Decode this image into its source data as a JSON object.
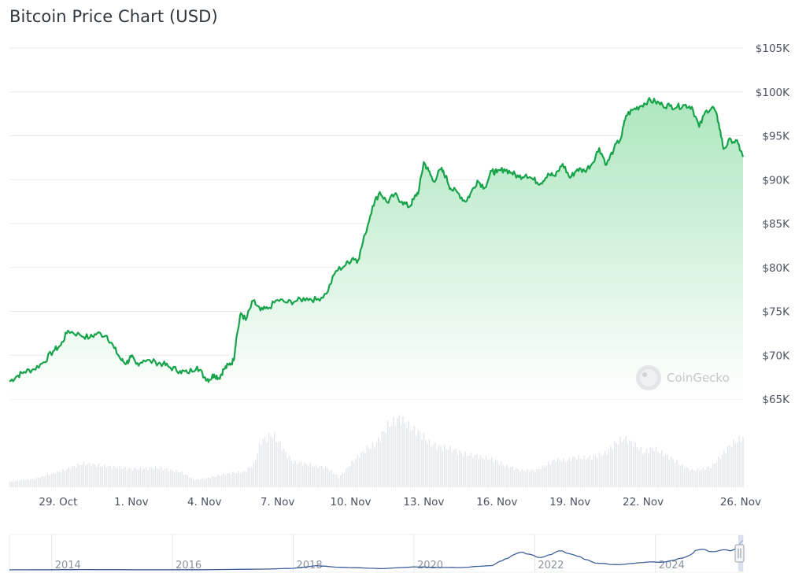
{
  "title": "Bitcoin Price Chart (USD)",
  "watermark": "CoinGecko",
  "colors": {
    "line": "#16a34a",
    "area_top": "#a9e5bb",
    "area_bottom": "#ffffff",
    "volume": "#e4e7ec",
    "grid": "#e8eaed",
    "navigator_line": "#3e5f9a"
  },
  "chart_data": {
    "type": "area",
    "title": "Bitcoin Price Chart (USD)",
    "x_start": "2024-10-27",
    "x_end": "2024-11-26",
    "x_tick_labels": [
      "29. Oct",
      "1. Nov",
      "4. Nov",
      "7. Nov",
      "10. Nov",
      "13. Nov",
      "16. Nov",
      "19. Nov",
      "22. Nov",
      "26. Nov"
    ],
    "x_tick_days": [
      2,
      5,
      8,
      11,
      14,
      17,
      20,
      23,
      26,
      30
    ],
    "y_tick_labels": [
      "$65K",
      "$70K",
      "$75K",
      "$80K",
      "$85K",
      "$90K",
      "$95K",
      "$100K",
      "$105K"
    ],
    "y_tick_values": [
      65000,
      70000,
      75000,
      80000,
      85000,
      90000,
      95000,
      100000,
      105000
    ],
    "ylim": [
      65000,
      105000
    ],
    "grid": true,
    "series": [
      {
        "days": [
          0,
          0.3,
          0.6,
          1,
          1.4,
          1.8,
          2.1,
          2.4,
          2.9,
          3.3,
          3.6,
          4,
          4.3,
          4.6,
          4.8,
          5,
          5.2,
          5.5,
          6,
          6.3,
          6.6,
          7,
          7.3,
          7.7,
          8,
          8.2,
          8.4,
          8.6,
          8.8,
          9,
          9.2,
          9.3,
          9.5,
          9.7,
          10,
          10.3,
          10.6,
          11,
          11.4,
          11.8,
          12.2,
          12.6,
          13,
          13.4,
          13.8,
          14.1,
          14.3,
          14.6,
          14.9,
          15.2,
          15.5,
          15.8,
          16.1,
          16.4,
          16.6,
          16.8,
          17,
          17.2,
          17.4,
          17.7,
          17.9,
          18.1,
          18.4,
          18.7,
          18.9,
          19.2,
          19.5,
          19.8,
          20,
          20.3,
          20.6,
          20.9,
          21.2,
          21.5,
          21.8,
          22.1,
          22.4,
          22.7,
          23,
          23.3,
          23.6,
          23.9,
          24.2,
          24.5,
          24.8,
          25.1,
          25.3,
          25.6,
          25.9,
          26.2,
          26.5,
          26.8,
          27.1,
          27.4,
          27.7,
          28,
          28.3,
          28.6,
          28.9,
          29.1,
          29.3,
          29.6,
          29.9,
          30.1
        ],
        "values": [
          67000,
          67600,
          68100,
          68400,
          69200,
          70500,
          71100,
          72800,
          72300,
          72000,
          72500,
          72200,
          70800,
          69400,
          69100,
          69800,
          69000,
          69400,
          69200,
          69000,
          68600,
          68200,
          68000,
          68700,
          67500,
          67200,
          67800,
          67400,
          68400,
          68900,
          69400,
          71800,
          74800,
          74000,
          76200,
          75100,
          75300,
          76300,
          76000,
          76200,
          76500,
          76300,
          77000,
          79600,
          80300,
          81100,
          80800,
          83800,
          87000,
          88600,
          87400,
          88300,
          87500,
          86900,
          87800,
          88800,
          92000,
          91000,
          89800,
          91200,
          90400,
          89000,
          88500,
          87500,
          88300,
          89900,
          89100,
          91000,
          90800,
          91200,
          90800,
          90300,
          90600,
          90000,
          89600,
          90700,
          90400,
          91800,
          90200,
          91200,
          91000,
          91800,
          93600,
          91700,
          93500,
          94800,
          97300,
          98000,
          98400,
          99000,
          98900,
          98500,
          98400,
          98300,
          98500,
          98300,
          96000,
          97900,
          98200,
          96500,
          93500,
          94600,
          94100,
          92600
        ]
      }
    ],
    "volume_series": {
      "days": [
        0,
        1,
        2,
        3,
        4,
        5,
        6,
        7,
        7.6,
        8.2,
        9,
        9.6,
        10,
        10.3,
        10.8,
        11.2,
        11.6,
        12,
        12.6,
        13,
        13.5,
        14.1,
        14.6,
        15,
        15.5,
        16,
        16.4,
        16.8,
        17.2,
        17.6,
        18,
        18.6,
        19.2,
        19.8,
        20.4,
        21,
        21.6,
        22,
        22.4,
        22.8,
        23.2,
        23.6,
        24,
        24.4,
        24.8,
        25.2,
        25.6,
        26,
        26.4,
        26.8,
        27.2,
        27.6,
        28,
        28.4,
        28.8,
        29.2,
        29.6,
        30.1
      ],
      "values": [
        0.08,
        0.12,
        0.22,
        0.34,
        0.3,
        0.26,
        0.28,
        0.22,
        0.1,
        0.14,
        0.2,
        0.22,
        0.32,
        0.66,
        0.76,
        0.55,
        0.36,
        0.34,
        0.3,
        0.28,
        0.14,
        0.38,
        0.54,
        0.62,
        0.88,
        1.0,
        0.86,
        0.78,
        0.64,
        0.58,
        0.56,
        0.48,
        0.44,
        0.4,
        0.3,
        0.24,
        0.24,
        0.32,
        0.4,
        0.38,
        0.43,
        0.42,
        0.44,
        0.48,
        0.62,
        0.7,
        0.62,
        0.5,
        0.56,
        0.48,
        0.4,
        0.3,
        0.24,
        0.26,
        0.3,
        0.46,
        0.62,
        0.72
      ]
    },
    "navigator": {
      "tick_labels": [
        "2014",
        "2016",
        "2018",
        "2020",
        "2022",
        "2024"
      ],
      "tick_years": [
        2013.5,
        2015.5,
        2017.5,
        2019.5,
        2021.5,
        2023.5
      ],
      "x_range_years": [
        2012.8,
        2024.95
      ],
      "series": {
        "years": [
          2012.8,
          2013.5,
          2014.0,
          2015.0,
          2016.0,
          2017.0,
          2017.5,
          2017.9,
          2018.2,
          2018.6,
          2019.0,
          2019.5,
          2019.9,
          2020.3,
          2020.8,
          2021.0,
          2021.3,
          2021.6,
          2021.9,
          2022.2,
          2022.5,
          2022.9,
          2023.3,
          2023.7,
          2024.0,
          2024.2,
          2024.5,
          2024.8,
          2024.95
        ],
        "values": [
          0.3,
          0.5,
          1.0,
          0.4,
          0.6,
          2.5,
          5.0,
          14.0,
          9.0,
          7.0,
          4.0,
          10.0,
          8.0,
          8.0,
          14.0,
          35.0,
          58.0,
          40.0,
          62.0,
          45.0,
          22.0,
          17.0,
          24.0,
          27.0,
          42.0,
          65.0,
          60.0,
          66.0,
          95.0
        ]
      }
    }
  }
}
